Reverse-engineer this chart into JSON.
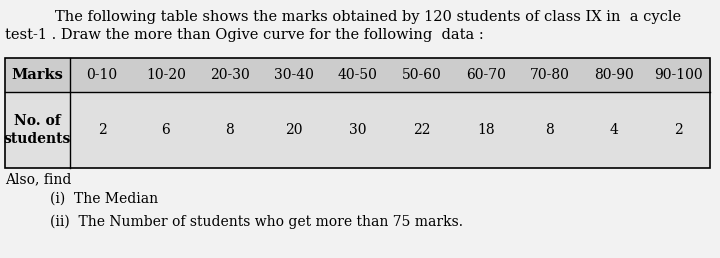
{
  "title_line1": "The following table shows the marks obtained by 120 students of class IX in  a cycle",
  "title_line2": "test-1 . Draw the more than Ogive curve for the following  data :",
  "col_header": "Marks",
  "row_header": "No. of\nstudents",
  "marks_ranges": [
    "0-10",
    "10-20",
    "20-30",
    "30-40",
    "40-50",
    "50-60",
    "60-70",
    "70-80",
    "80-90",
    "90-100"
  ],
  "students": [
    2,
    6,
    8,
    20,
    30,
    22,
    18,
    8,
    4,
    2
  ],
  "also_find": "Also, find",
  "item_i": "(i)  The Median",
  "item_ii": "(ii)  The Number of students who get more than 75 marks.",
  "header_bg": "#cccccc",
  "data_bg": "#e0e0e0",
  "page_bg": "#f2f2f2",
  "font_size_title": 10.5,
  "font_size_table": 10.0,
  "font_size_items": 10.0
}
